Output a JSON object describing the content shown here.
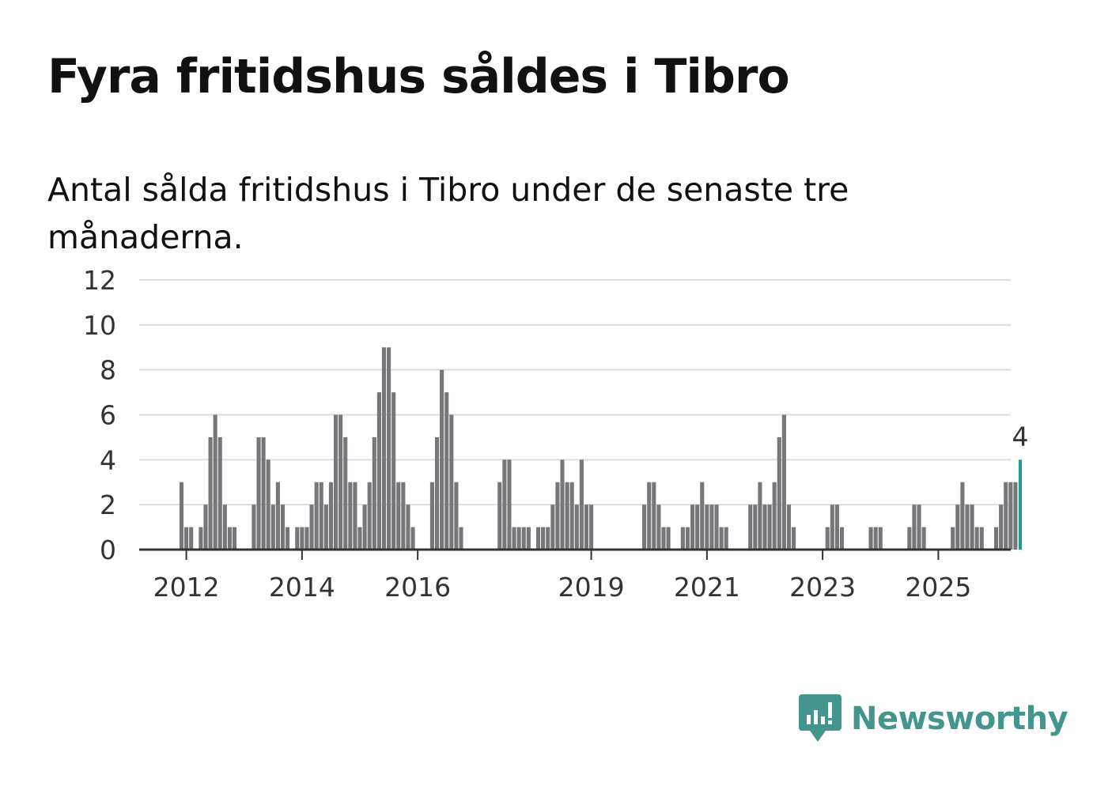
{
  "title": "Fyra fritidshus såldes i Tibro",
  "subtitle": "Antal sålda fritidshus i Tibro under de senaste tre månaderna.",
  "brand": {
    "name": "Newsworthy",
    "color": "#45958f",
    "icon": "newsworthy-logo-icon"
  },
  "colors": {
    "bar": "#77767b",
    "highlight": "#1f9a91",
    "grid": "#dddddd",
    "axis": "#333333"
  },
  "chart_data": {
    "type": "bar",
    "title": "",
    "xlabel": "",
    "ylabel": "",
    "ylim": [
      0,
      12
    ],
    "yticks": [
      0,
      2,
      4,
      6,
      8,
      10,
      12
    ],
    "xticks": [
      "2012",
      "2014",
      "2016",
      "2019",
      "2021",
      "2023",
      "2025"
    ],
    "grid": true,
    "x_start": "2011-12",
    "x_end": "2025-06",
    "highlight_label": "4",
    "values": [
      3,
      1,
      1,
      0,
      1,
      2,
      5,
      6,
      5,
      2,
      1,
      1,
      0,
      0,
      0,
      2,
      5,
      5,
      4,
      2,
      3,
      2,
      1,
      0,
      1,
      1,
      1,
      2,
      3,
      3,
      2,
      3,
      6,
      6,
      5,
      3,
      3,
      1,
      2,
      3,
      5,
      7,
      9,
      9,
      7,
      3,
      3,
      2,
      1,
      0,
      0,
      0,
      3,
      5,
      8,
      7,
      6,
      3,
      1,
      0,
      0,
      0,
      0,
      0,
      0,
      0,
      3,
      4,
      4,
      1,
      1,
      1,
      1,
      0,
      1,
      1,
      1,
      2,
      3,
      4,
      3,
      3,
      2,
      4,
      2,
      2,
      0,
      0,
      0,
      0,
      0,
      0,
      0,
      0,
      0,
      0,
      2,
      3,
      3,
      2,
      1,
      1,
      0,
      0,
      1,
      1,
      2,
      2,
      3,
      2,
      2,
      2,
      1,
      1,
      0,
      0,
      0,
      0,
      2,
      2,
      3,
      2,
      2,
      3,
      5,
      6,
      2,
      1,
      0,
      0,
      0,
      0,
      0,
      0,
      1,
      2,
      2,
      1,
      0,
      0,
      0,
      0,
      0,
      1,
      1,
      1,
      0,
      0,
      0,
      0,
      0,
      1,
      2,
      2,
      1,
      0,
      0,
      0,
      0,
      0,
      1,
      2,
      3,
      2,
      2,
      1,
      1,
      0,
      0,
      1,
      2,
      3,
      3,
      3,
      4
    ]
  }
}
